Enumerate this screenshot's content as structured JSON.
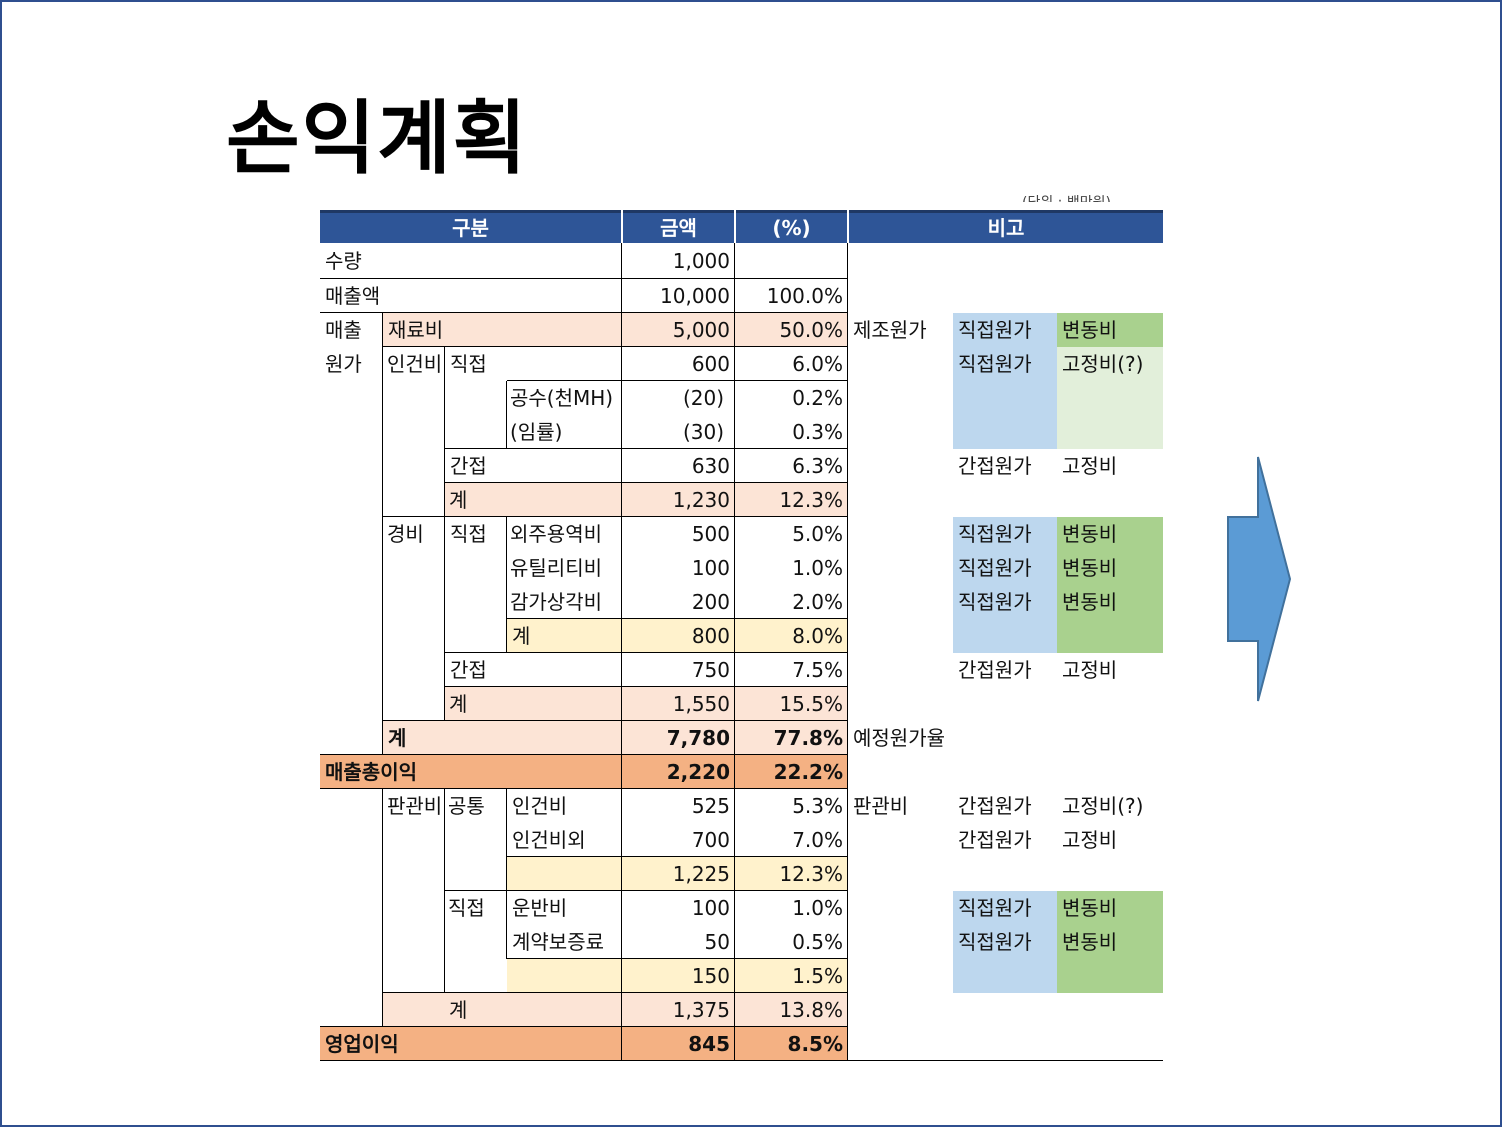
{
  "title": "손익계획",
  "unit_note": "(단위 : 백만원)",
  "header": {
    "category": "구분",
    "amount": "금액",
    "pct": "(%)",
    "remarks": "비고"
  },
  "rows": {
    "qty": {
      "label": "수량",
      "amount": "1,000",
      "pct": ""
    },
    "sales": {
      "label": "매출액",
      "amount": "10,000",
      "pct": "100.0%"
    },
    "cogs_a": "매출",
    "cogs_b": "원가",
    "material": {
      "label": "재료비",
      "amount": "5,000",
      "pct": "50.0%",
      "note": "제조원가",
      "cost": "직접원가",
      "behavior": "변동비"
    },
    "labor": "인건비",
    "labor_direct": {
      "label": "직접",
      "amount": "600",
      "pct": "6.0%",
      "cost": "직접원가",
      "behavior": "고정비(?)"
    },
    "labor_hours": {
      "label": "공수(천MH)",
      "amount": "(20)",
      "pct": "0.2%"
    },
    "labor_rate": {
      "label": "(임률)",
      "amount": "(30)",
      "pct": "0.3%"
    },
    "labor_indirect": {
      "label": "간접",
      "amount": "630",
      "pct": "6.3%",
      "cost": "간접원가",
      "behavior": "고정비"
    },
    "labor_total": {
      "label": "계",
      "amount": "1,230",
      "pct": "12.3%"
    },
    "expense": "경비",
    "expense_direct": "직접",
    "outsourcing": {
      "label": "외주용역비",
      "amount": "500",
      "pct": "5.0%",
      "cost": "직접원가",
      "behavior": "변동비"
    },
    "utility": {
      "label": "유틸리티비",
      "amount": "100",
      "pct": "1.0%",
      "cost": "직접원가",
      "behavior": "변동비"
    },
    "depreciation": {
      "label": "감가상각비",
      "amount": "200",
      "pct": "2.0%",
      "cost": "직접원가",
      "behavior": "변동비"
    },
    "expense_direct_total": {
      "label": "계",
      "amount": "800",
      "pct": "8.0%"
    },
    "expense_indirect": {
      "label": "간접",
      "amount": "750",
      "pct": "7.5%",
      "cost": "간접원가",
      "behavior": "고정비"
    },
    "expense_total": {
      "label": "계",
      "amount": "1,550",
      "pct": "15.5%"
    },
    "cogs_total": {
      "label": "계",
      "amount": "7,780",
      "pct": "77.8%",
      "note": "예정원가율"
    },
    "gross_profit": {
      "label": "매출총이익",
      "amount": "2,220",
      "pct": "22.2%"
    },
    "sga": "판관비",
    "sga_common": "공통",
    "sga_labor": {
      "label": "인건비",
      "amount": "525",
      "pct": "5.3%",
      "note": "판관비",
      "cost": "간접원가",
      "behavior": "고정비(?)"
    },
    "sga_other": {
      "label": "인건비외",
      "amount": "700",
      "pct": "7.0%",
      "cost": "간접원가",
      "behavior": "고정비"
    },
    "sga_common_total": {
      "amount": "1,225",
      "pct": "12.3%"
    },
    "sga_direct": "직접",
    "freight": {
      "label": "운반비",
      "amount": "100",
      "pct": "1.0%",
      "cost": "직접원가",
      "behavior": "변동비"
    },
    "bond": {
      "label": "계약보증료",
      "amount": "50",
      "pct": "0.5%",
      "cost": "직접원가",
      "behavior": "변동비"
    },
    "sga_direct_total": {
      "amount": "150",
      "pct": "1.5%"
    },
    "sga_total": {
      "label": "계",
      "amount": "1,375",
      "pct": "13.8%"
    },
    "op_profit": {
      "label": "영업이익",
      "amount": "845",
      "pct": "8.5%"
    }
  },
  "colors": {
    "header": "#2e5597",
    "arrow": "#5b9bd5",
    "direct_cost": "#bdd7ee",
    "variable": "#a9d18e"
  }
}
